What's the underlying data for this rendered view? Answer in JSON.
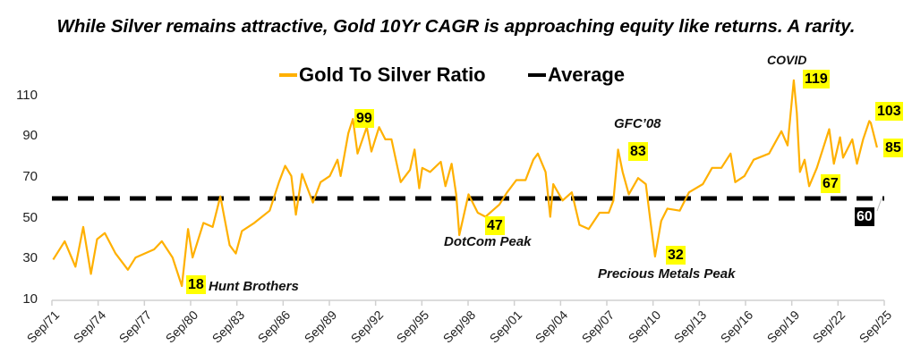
{
  "chart_data": {
    "type": "line",
    "title": "While Silver remains attractive, Gold 10Yr CAGR is approaching equity like returns. A rarity.",
    "xlabel": "",
    "ylabel": "",
    "ylim": [
      10,
      110
    ],
    "yticks": [
      "110",
      "90",
      "70",
      "50",
      "30",
      "10"
    ],
    "xticks": [
      "Sep/71",
      "Sep/74",
      "Sep/77",
      "Sep/80",
      "Sep/83",
      "Sep/86",
      "Sep/89",
      "Sep/92",
      "Sep/95",
      "Sep/98",
      "Sep/01",
      "Sep/04",
      "Sep/07",
      "Sep/10",
      "Sep/13",
      "Sep/16",
      "Sep/19",
      "Sep/22",
      "Sep/25"
    ],
    "xlim_years": [
      1971.67,
      2025.67
    ],
    "grid": false,
    "legend": {
      "placement": "top-center",
      "entries": [
        "Gold To Silver Ratio",
        "Average"
      ]
    },
    "colors": {
      "ratio": "#ffb000",
      "average": "#000000",
      "badge": "#ffff00"
    },
    "series": [
      {
        "name": "Gold To Silver Ratio",
        "x": [
          1971.75,
          1972.5,
          1973.2,
          1973.7,
          1974.2,
          1974.6,
          1975.1,
          1975.8,
          1976.6,
          1977.1,
          1978.3,
          1978.8,
          1979.5,
          1980.1,
          1980.5,
          1980.8,
          1981.5,
          1982.1,
          1982.6,
          1983.2,
          1983.6,
          1984.0,
          1984.8,
          1985.8,
          1986.4,
          1986.8,
          1987.2,
          1987.5,
          1987.9,
          1988.6,
          1989.1,
          1989.7,
          1990.2,
          1990.4,
          1990.9,
          1991.2,
          1991.5,
          1992.1,
          1992.4,
          1992.9,
          1993.3,
          1993.7,
          1994.3,
          1994.9,
          1995.2,
          1995.5,
          1995.7,
          1996.2,
          1996.9,
          1997.2,
          1997.6,
          1997.9,
          1998.1,
          1998.7,
          1999.3,
          1999.8,
          2000.7,
          2001.2,
          2001.8,
          2002.4,
          2002.9,
          2003.2,
          2003.7,
          2004.0,
          2004.2,
          2004.8,
          2005.4,
          2005.9,
          2006.5,
          2007.2,
          2007.8,
          2008.1,
          2008.4,
          2008.7,
          2009.1,
          2009.7,
          2010.2,
          2010.5,
          2010.8,
          2011.2,
          2011.6,
          2012.4,
          2013.0,
          2013.9,
          2014.5,
          2015.1,
          2015.7,
          2016.0,
          2016.6,
          2017.2,
          2018.2,
          2019.0,
          2019.4,
          2019.8,
          2020.0,
          2020.2,
          2020.5,
          2020.8,
          2021.3,
          2022.1,
          2022.4,
          2022.8,
          2023.0,
          2023.6,
          2023.9,
          2024.3,
          2024.7,
          2024.8,
          2025.1,
          2025.2
        ],
        "values": [
          30,
          39,
          26.5,
          46,
          23,
          40,
          43,
          33,
          25,
          31,
          35,
          39,
          31,
          17,
          45,
          31,
          48,
          46,
          61,
          37,
          33,
          44,
          48,
          54,
          68,
          76,
          71,
          52,
          72,
          58,
          68,
          71,
          79,
          71,
          92,
          99,
          82,
          95,
          83,
          95,
          89,
          89,
          68,
          74,
          84,
          65,
          75,
          73,
          78,
          66,
          77,
          62,
          42,
          62,
          53,
          51,
          57,
          63,
          69,
          69,
          79,
          82,
          73,
          51,
          67,
          59,
          63,
          47,
          45,
          53,
          53,
          59,
          84,
          73,
          62,
          70,
          67,
          49,
          31.5,
          49,
          55,
          54,
          63,
          67,
          75,
          75,
          82,
          68,
          71,
          79,
          82,
          93,
          86,
          118,
          102,
          73,
          79,
          66,
          75,
          94,
          77,
          90,
          80,
          89,
          77,
          89,
          98,
          97,
          88,
          85
        ]
      },
      {
        "name": "Average",
        "value": 60
      }
    ],
    "annotations": {
      "hunt": {
        "value": "18",
        "text": "Hunt Brothers"
      },
      "peak91": {
        "value": "99"
      },
      "dotcom": {
        "value": "47",
        "text": "DotCom Peak"
      },
      "gfc": {
        "value": "83",
        "text": "GFC’08"
      },
      "pm": {
        "value": "32",
        "text": "Precious Metals Peak"
      },
      "covid": {
        "value": "119",
        "text": "COVID"
      },
      "peak24": {
        "value": "103"
      },
      "latest": {
        "value": "85"
      },
      "low22": {
        "value": "67"
      },
      "avg": {
        "value": "60"
      }
    }
  }
}
